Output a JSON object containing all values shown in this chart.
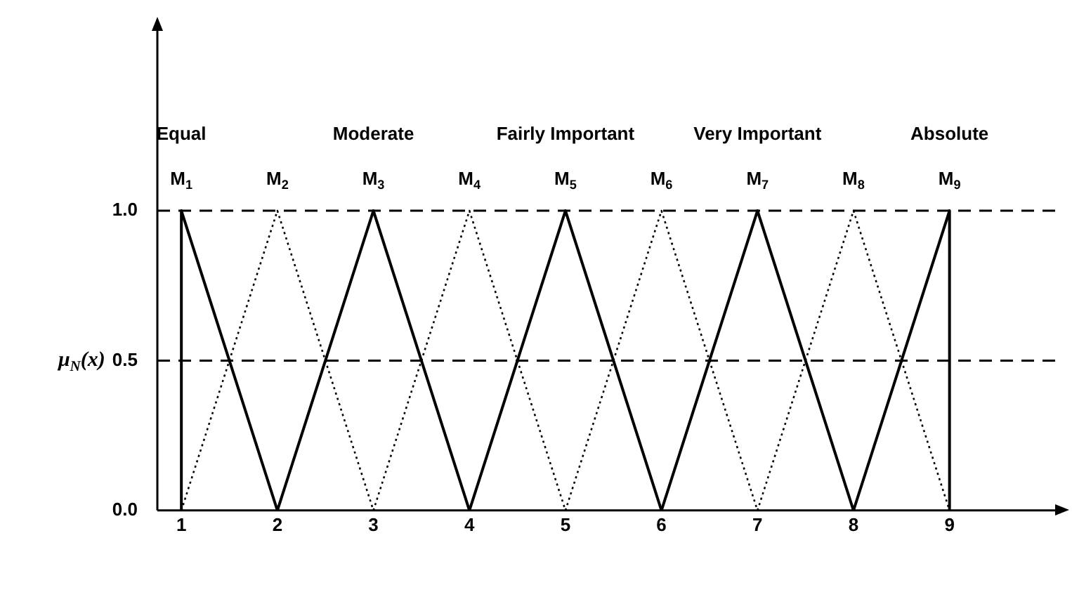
{
  "chart_data": {
    "type": "line",
    "ylabel": "μ$_{N}$(x)",
    "xlim": [
      0.75,
      10.1
    ],
    "ylim": [
      0,
      1.6
    ],
    "xticks": [
      1,
      2,
      3,
      4,
      5,
      6,
      7,
      8,
      9
    ],
    "yticks": [
      {
        "value": 0,
        "label": "0.0"
      },
      {
        "value": 0.5,
        "label": "0.5"
      },
      {
        "value": 1,
        "label": "1.0"
      }
    ],
    "grid": false,
    "legend": false,
    "marker": "none",
    "ref_lines": [
      {
        "axis": "y",
        "value": 1,
        "color": "#000000",
        "line_style": "dashed"
      },
      {
        "axis": "y",
        "value": 0.5,
        "color": "#000000",
        "line_style": "dashed"
      }
    ],
    "annotations": [
      "Equal",
      "Moderate",
      "Fairly Important",
      "Very Important",
      "Absolute"
    ],
    "series": [
      {
        "name": "M$_{1}$",
        "color": "#000000",
        "line_style": "solid",
        "x": [
          1,
          1,
          2
        ],
        "values": [
          0,
          1,
          0
        ]
      },
      {
        "name": "M$_{2}$",
        "color": "#000000",
        "line_style": "dotted",
        "x": [
          1,
          2,
          3
        ],
        "values": [
          0,
          1,
          0
        ]
      },
      {
        "name": "M$_{3}$",
        "color": "#000000",
        "line_style": "solid",
        "x": [
          2,
          3,
          4
        ],
        "values": [
          0,
          1,
          0
        ]
      },
      {
        "name": "M$_{4}$",
        "color": "#000000",
        "line_style": "dotted",
        "x": [
          3,
          4,
          5
        ],
        "values": [
          0,
          1,
          0
        ]
      },
      {
        "name": "M$_{5}$",
        "color": "#000000",
        "line_style": "solid",
        "x": [
          4,
          5,
          6
        ],
        "values": [
          0,
          1,
          0
        ]
      },
      {
        "name": "M$_{6}$",
        "color": "#000000",
        "line_style": "dotted",
        "x": [
          5,
          6,
          7
        ],
        "values": [
          0,
          1,
          0
        ]
      },
      {
        "name": "M$_{7}$",
        "color": "#000000",
        "line_style": "solid",
        "x": [
          6,
          7,
          8
        ],
        "values": [
          0,
          1,
          0
        ]
      },
      {
        "name": "M$_{8}$",
        "color": "#000000",
        "line_style": "dotted",
        "x": [
          7,
          8,
          9
        ],
        "values": [
          0,
          1,
          0
        ]
      },
      {
        "name": "M$_{9}$",
        "color": "#000000",
        "line_style": "solid",
        "x": [
          8,
          9,
          9
        ],
        "values": [
          0,
          1,
          0
        ]
      }
    ]
  }
}
